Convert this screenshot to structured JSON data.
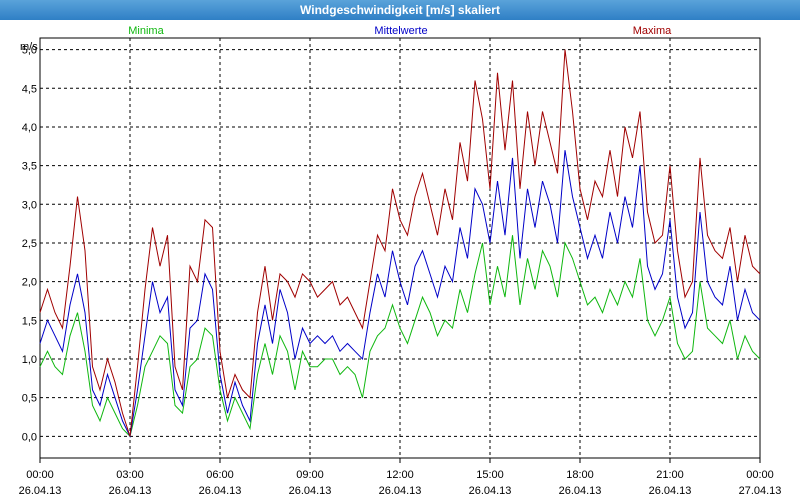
{
  "window": {
    "title": "Windgeschwindigkeit [m/s] skaliert"
  },
  "colors": {
    "minima": "#0fb70f",
    "mittelwerte": "#0000c8",
    "maxima": "#a00000",
    "grid": "#000000"
  },
  "chart_data": {
    "type": "line",
    "title": "Windgeschwindigkeit [m/s] skaliert",
    "ylabel": "m/s",
    "ylim": [
      0,
      5
    ],
    "yticks": [
      "0,0",
      "0,5",
      "1,0",
      "1,5",
      "2,0",
      "2,5",
      "3,0",
      "3,5",
      "4,0",
      "4,5",
      "5,0"
    ],
    "xlim": [
      0,
      24
    ],
    "xticks": [
      {
        "time": "00:00",
        "date": "26.04.13"
      },
      {
        "time": "03:00",
        "date": "26.04.13"
      },
      {
        "time": "06:00",
        "date": "26.04.13"
      },
      {
        "time": "09:00",
        "date": "26.04.13"
      },
      {
        "time": "12:00",
        "date": "26.04.13"
      },
      {
        "time": "15:00",
        "date": "26.04.13"
      },
      {
        "time": "18:00",
        "date": "26.04.13"
      },
      {
        "time": "21:00",
        "date": "26.04.13"
      },
      {
        "time": "00:00",
        "date": "27.04.13"
      }
    ],
    "grid": true,
    "legend_position": "top",
    "series": [
      {
        "name": "Minima",
        "color_key": "minima",
        "x": [
          0,
          0.25,
          0.5,
          0.75,
          1.0,
          1.25,
          1.5,
          1.75,
          2.0,
          2.25,
          2.5,
          2.75,
          3.0,
          3.25,
          3.5,
          3.75,
          4.0,
          4.25,
          4.5,
          4.75,
          5.0,
          5.25,
          5.5,
          5.75,
          6.0,
          6.25,
          6.5,
          6.75,
          7.0,
          7.25,
          7.5,
          7.75,
          8.0,
          8.25,
          8.5,
          8.75,
          9.0,
          9.25,
          9.5,
          9.75,
          10.0,
          10.25,
          10.5,
          10.75,
          11.0,
          11.25,
          11.5,
          11.75,
          12.0,
          12.25,
          12.5,
          12.75,
          13.0,
          13.25,
          13.5,
          13.75,
          14.0,
          14.25,
          14.5,
          14.75,
          15.0,
          15.25,
          15.5,
          15.75,
          16.0,
          16.25,
          16.5,
          16.75,
          17.0,
          17.25,
          17.5,
          17.75,
          18.0,
          18.25,
          18.5,
          18.75,
          19.0,
          19.25,
          19.5,
          19.75,
          20.0,
          20.25,
          20.5,
          20.75,
          21.0,
          21.25,
          21.5,
          21.75,
          22.0,
          22.25,
          22.5,
          22.75,
          23.0,
          23.25,
          23.5,
          23.75,
          24.0
        ],
        "y": [
          0.9,
          1.1,
          0.9,
          0.8,
          1.3,
          1.6,
          1.1,
          0.4,
          0.2,
          0.5,
          0.3,
          0.1,
          0.0,
          0.4,
          0.9,
          1.1,
          1.3,
          1.2,
          0.4,
          0.3,
          0.9,
          1.0,
          1.4,
          1.3,
          0.6,
          0.2,
          0.5,
          0.3,
          0.1,
          0.8,
          1.2,
          0.8,
          1.3,
          1.1,
          0.6,
          1.1,
          0.9,
          0.9,
          1.0,
          1.0,
          0.8,
          0.9,
          0.8,
          0.5,
          1.1,
          1.3,
          1.4,
          1.7,
          1.4,
          1.2,
          1.5,
          1.8,
          1.6,
          1.3,
          1.5,
          1.4,
          1.9,
          1.6,
          2.1,
          2.5,
          1.7,
          2.2,
          1.8,
          2.6,
          1.7,
          2.3,
          1.9,
          2.4,
          2.2,
          1.8,
          2.5,
          2.3,
          2.0,
          1.7,
          1.8,
          1.6,
          1.9,
          1.7,
          2.0,
          1.8,
          2.3,
          1.5,
          1.3,
          1.5,
          1.8,
          1.2,
          1.0,
          1.1,
          2.0,
          1.4,
          1.3,
          1.2,
          1.5,
          1.0,
          1.3,
          1.1,
          1.0
        ]
      },
      {
        "name": "Mittelwerte",
        "color_key": "mittelwerte",
        "x": [
          0,
          0.25,
          0.5,
          0.75,
          1.0,
          1.25,
          1.5,
          1.75,
          2.0,
          2.25,
          2.5,
          2.75,
          3.0,
          3.25,
          3.5,
          3.75,
          4.0,
          4.25,
          4.5,
          4.75,
          5.0,
          5.25,
          5.5,
          5.75,
          6.0,
          6.25,
          6.5,
          6.75,
          7.0,
          7.25,
          7.5,
          7.75,
          8.0,
          8.25,
          8.5,
          8.75,
          9.0,
          9.25,
          9.5,
          9.75,
          10.0,
          10.25,
          10.5,
          10.75,
          11.0,
          11.25,
          11.5,
          11.75,
          12.0,
          12.25,
          12.5,
          12.75,
          13.0,
          13.25,
          13.5,
          13.75,
          14.0,
          14.25,
          14.5,
          14.75,
          15.0,
          15.25,
          15.5,
          15.75,
          16.0,
          16.25,
          16.5,
          16.75,
          17.0,
          17.25,
          17.5,
          17.75,
          18.0,
          18.25,
          18.5,
          18.75,
          19.0,
          19.25,
          19.5,
          19.75,
          20.0,
          20.25,
          20.5,
          20.75,
          21.0,
          21.25,
          21.5,
          21.75,
          22.0,
          22.25,
          22.5,
          22.75,
          23.0,
          23.25,
          23.5,
          23.75,
          24.0
        ],
        "y": [
          1.2,
          1.5,
          1.3,
          1.1,
          1.7,
          2.1,
          1.6,
          0.6,
          0.4,
          0.8,
          0.5,
          0.2,
          0.0,
          0.6,
          1.3,
          2.0,
          1.6,
          1.8,
          0.6,
          0.4,
          1.4,
          1.5,
          2.1,
          1.9,
          0.8,
          0.3,
          0.7,
          0.4,
          0.2,
          1.2,
          1.7,
          1.2,
          1.9,
          1.6,
          1.0,
          1.4,
          1.2,
          1.3,
          1.2,
          1.3,
          1.1,
          1.2,
          1.1,
          1.0,
          1.6,
          2.1,
          1.8,
          2.4,
          2.0,
          1.7,
          2.2,
          2.4,
          2.1,
          1.8,
          2.2,
          2.0,
          2.7,
          2.3,
          3.2,
          3.0,
          2.5,
          3.3,
          2.6,
          3.6,
          2.3,
          3.2,
          2.7,
          3.3,
          3.0,
          2.5,
          3.7,
          3.1,
          2.7,
          2.3,
          2.6,
          2.3,
          2.9,
          2.5,
          3.1,
          2.7,
          3.5,
          2.2,
          1.9,
          2.1,
          2.8,
          1.8,
          1.4,
          1.6,
          2.9,
          2.0,
          1.8,
          1.7,
          2.2,
          1.5,
          1.9,
          1.6,
          1.5
        ]
      },
      {
        "name": "Maxima",
        "color_key": "maxima",
        "x": [
          0,
          0.25,
          0.5,
          0.75,
          1.0,
          1.25,
          1.5,
          1.75,
          2.0,
          2.25,
          2.5,
          2.75,
          3.0,
          3.25,
          3.5,
          3.75,
          4.0,
          4.25,
          4.5,
          4.75,
          5.0,
          5.25,
          5.5,
          5.75,
          6.0,
          6.25,
          6.5,
          6.75,
          7.0,
          7.25,
          7.5,
          7.75,
          8.0,
          8.25,
          8.5,
          8.75,
          9.0,
          9.25,
          9.5,
          9.75,
          10.0,
          10.25,
          10.5,
          10.75,
          11.0,
          11.25,
          11.5,
          11.75,
          12.0,
          12.25,
          12.5,
          12.75,
          13.0,
          13.25,
          13.5,
          13.75,
          14.0,
          14.25,
          14.5,
          14.75,
          15.0,
          15.25,
          15.5,
          15.75,
          16.0,
          16.25,
          16.5,
          16.75,
          17.0,
          17.25,
          17.5,
          17.75,
          18.0,
          18.25,
          18.5,
          18.75,
          19.0,
          19.25,
          19.5,
          19.75,
          20.0,
          20.25,
          20.5,
          20.75,
          21.0,
          21.25,
          21.5,
          21.75,
          22.0,
          22.25,
          22.5,
          22.75,
          23.0,
          23.25,
          23.5,
          23.75,
          24.0
        ],
        "y": [
          1.6,
          1.9,
          1.6,
          1.4,
          2.2,
          3.1,
          2.4,
          0.9,
          0.6,
          1.0,
          0.7,
          0.3,
          0.0,
          0.9,
          1.9,
          2.7,
          2.2,
          2.6,
          0.9,
          0.6,
          2.2,
          2.0,
          2.8,
          2.7,
          1.1,
          0.5,
          0.8,
          0.6,
          0.5,
          1.6,
          2.2,
          1.5,
          2.1,
          2.0,
          1.8,
          2.1,
          2.0,
          1.8,
          1.9,
          2.0,
          1.7,
          1.8,
          1.6,
          1.4,
          2.0,
          2.6,
          2.4,
          3.2,
          2.8,
          2.6,
          3.1,
          3.4,
          3.0,
          2.6,
          3.2,
          2.8,
          3.8,
          3.3,
          4.6,
          4.1,
          3.2,
          4.7,
          3.7,
          4.6,
          3.2,
          4.2,
          3.5,
          4.2,
          3.8,
          3.4,
          5.0,
          4.2,
          3.2,
          2.8,
          3.3,
          3.1,
          3.7,
          3.1,
          4.0,
          3.6,
          4.2,
          2.9,
          2.5,
          2.6,
          3.5,
          2.4,
          1.8,
          2.0,
          3.6,
          2.6,
          2.4,
          2.3,
          2.7,
          2.0,
          2.6,
          2.2,
          2.1
        ]
      }
    ]
  }
}
